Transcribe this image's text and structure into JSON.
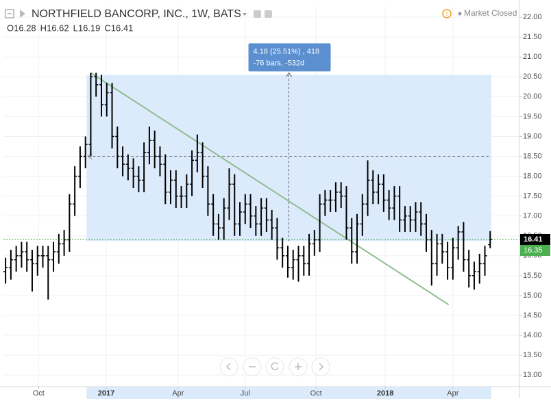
{
  "chart_data": {
    "type": "ohlc",
    "title": "NORTHFIELD BANCORP, INC., 1W, BATS",
    "status": "Market Closed",
    "ohlc_prefixes": [
      "O",
      "H",
      "L",
      "C"
    ],
    "color": "#000000",
    "x": [
      0,
      1,
      2,
      3,
      4,
      5,
      6,
      7,
      8,
      9,
      10,
      11,
      12,
      13,
      14,
      15,
      16,
      17,
      18,
      19,
      20,
      21,
      22,
      23,
      24,
      25,
      26,
      27,
      28,
      29,
      30,
      31,
      32,
      33,
      34,
      35,
      36,
      37,
      38,
      39,
      40,
      41,
      42,
      43,
      44,
      45,
      46,
      47,
      48,
      49,
      50,
      51,
      52,
      53,
      54,
      55,
      56,
      57,
      58,
      59,
      60,
      61,
      62,
      63,
      64,
      65,
      66,
      67,
      68,
      69,
      70,
      71,
      72,
      73,
      74,
      75,
      76,
      77,
      78,
      79,
      80,
      81,
      82,
      83,
      84,
      85,
      86,
      87,
      88,
      89,
      90,
      91
    ],
    "open": [
      15.6,
      15.7,
      15.9,
      16.0,
      16.1,
      15.9,
      15.8,
      16.0,
      16.0,
      15.9,
      16.1,
      16.3,
      16.4,
      17.3,
      18.0,
      18.5,
      18.8,
      20.5,
      20.3,
      19.8,
      20.1,
      19.0,
      18.5,
      18.3,
      18.2,
      18.0,
      17.9,
      18.6,
      18.9,
      18.5,
      18.3,
      17.6,
      17.9,
      17.5,
      17.5,
      17.8,
      18.4,
      18.6,
      18.0,
      17.3,
      16.8,
      16.7,
      17.2,
      17.8,
      16.8,
      17.1,
      17.3,
      17.0,
      16.8,
      17.2,
      16.9,
      16.7,
      16.2,
      16.0,
      15.7,
      15.9,
      16.0,
      15.8,
      16.3,
      16.4,
      17.3,
      17.4,
      17.4,
      17.6,
      17.5,
      16.7,
      16.1,
      16.8,
      17.3,
      17.9,
      17.6,
      17.8,
      17.4,
      17.2,
      17.5,
      16.9,
      17.0,
      16.9,
      17.1,
      16.8,
      16.4,
      15.8,
      16.3,
      16.1,
      15.7,
      16.2,
      16.6,
      15.9,
      15.5,
      15.6,
      15.8,
      16.28
    ],
    "high": [
      15.95,
      16.15,
      16.25,
      16.35,
      16.35,
      16.15,
      16.25,
      16.25,
      16.25,
      16.35,
      16.55,
      16.65,
      17.55,
      18.25,
      18.75,
      19.0,
      20.6,
      20.6,
      20.55,
      20.35,
      20.35,
      19.25,
      18.75,
      18.55,
      18.45,
      18.25,
      18.85,
      19.25,
      19.15,
      18.75,
      18.55,
      18.15,
      18.15,
      17.75,
      18.05,
      18.65,
      19.05,
      18.85,
      18.25,
      17.55,
      17.05,
      17.45,
      18.2,
      18.05,
      17.35,
      17.55,
      17.55,
      17.25,
      17.45,
      17.45,
      17.15,
      16.95,
      16.45,
      16.25,
      16.15,
      16.25,
      16.25,
      16.55,
      16.65,
      17.55,
      17.65,
      17.65,
      17.85,
      17.85,
      17.75,
      16.95,
      17.05,
      17.55,
      18.4,
      18.15,
      18.05,
      18.05,
      17.65,
      17.75,
      17.75,
      17.25,
      17.25,
      17.35,
      17.35,
      17.05,
      16.65,
      16.55,
      16.55,
      16.35,
      16.45,
      16.75,
      16.85,
      16.15,
      15.85,
      16.05,
      16.25,
      16.62
    ],
    "low": [
      15.3,
      15.4,
      15.6,
      15.7,
      15.6,
      15.1,
      15.5,
      15.7,
      14.9,
      15.6,
      15.8,
      16.0,
      16.1,
      17.0,
      17.7,
      18.2,
      18.5,
      20.0,
      19.5,
      19.5,
      18.7,
      18.2,
      18.0,
      17.9,
      17.7,
      17.6,
      17.6,
      18.3,
      18.2,
      18.0,
      17.3,
      17.3,
      17.2,
      17.2,
      17.2,
      17.5,
      18.1,
      17.7,
      17.0,
      16.5,
      16.4,
      16.4,
      16.9,
      16.5,
      16.5,
      16.8,
      16.7,
      16.5,
      16.5,
      16.6,
      16.4,
      15.9,
      15.7,
      15.45,
      15.4,
      15.35,
      15.5,
      15.5,
      16.0,
      16.1,
      17.0,
      17.1,
      17.1,
      17.2,
      16.4,
      15.8,
      15.8,
      16.5,
      17.0,
      17.3,
      17.3,
      17.1,
      16.9,
      16.9,
      16.6,
      16.6,
      16.6,
      16.6,
      16.5,
      16.1,
      15.25,
      15.5,
      15.8,
      15.4,
      15.4,
      15.9,
      15.6,
      15.2,
      15.15,
      15.3,
      15.5,
      16.19
    ],
    "close": [
      15.7,
      15.9,
      16.0,
      16.1,
      15.9,
      15.8,
      16.0,
      16.0,
      15.9,
      16.1,
      16.3,
      16.4,
      17.3,
      18.0,
      18.5,
      18.8,
      20.5,
      20.3,
      19.8,
      20.1,
      19.0,
      18.5,
      18.3,
      18.2,
      18.0,
      17.9,
      18.6,
      18.9,
      18.5,
      18.3,
      17.6,
      17.9,
      17.5,
      17.5,
      17.8,
      18.4,
      18.6,
      18.0,
      17.3,
      16.8,
      16.7,
      17.2,
      17.8,
      16.8,
      17.1,
      17.3,
      17.0,
      16.8,
      17.2,
      16.9,
      16.7,
      16.2,
      16.0,
      15.7,
      15.9,
      16.0,
      15.8,
      16.3,
      16.4,
      17.3,
      17.4,
      17.4,
      17.6,
      17.5,
      16.7,
      16.1,
      16.8,
      17.3,
      17.9,
      17.6,
      17.8,
      17.4,
      17.2,
      17.5,
      16.9,
      17.0,
      16.9,
      17.1,
      16.8,
      16.4,
      15.8,
      16.3,
      16.1,
      15.7,
      16.2,
      16.6,
      15.9,
      15.5,
      15.6,
      15.8,
      16.0,
      16.41
    ],
    "line_level": 16.35,
    "trend_line": {
      "x": [
        16,
        83.2
      ],
      "y": [
        20.6,
        14.77
      ],
      "color": "#8fbc8f"
    },
    "measure": {
      "xlim": [
        15.2,
        91.2
      ],
      "ylim": [
        16.37,
        20.55
      ],
      "mid": 18.5,
      "color": "#dcebfb",
      "label_lines": [
        "4.18 (25.51%) , 418",
        "-76 bars, -532d"
      ]
    },
    "xlim": [
      -0.4,
      96.5
    ],
    "ylim": [
      12.71,
      22.26
    ],
    "xticks": [
      {
        "value": 6.2,
        "label": "Oct"
      },
      {
        "value": 18.9,
        "label": "2017"
      },
      {
        "value": 32.4,
        "label": "Apr"
      },
      {
        "value": 45,
        "label": "Jul"
      },
      {
        "value": 58.3,
        "label": "Oct"
      },
      {
        "value": 71.3,
        "label": "2018"
      },
      {
        "value": 84,
        "label": "Apr"
      }
    ],
    "yticks": [
      {
        "value": 13,
        "label": "13.00"
      },
      {
        "value": 13.5,
        "label": "13.50"
      },
      {
        "value": 14,
        "label": "14.00"
      },
      {
        "value": 14.5,
        "label": "14.50"
      },
      {
        "value": 15,
        "label": "15.00"
      },
      {
        "value": 15.5,
        "label": "15.50"
      },
      {
        "value": 16,
        "label": "16.00"
      },
      {
        "value": 16.5,
        "label": "16.50"
      },
      {
        "value": 17,
        "label": "17.00"
      },
      {
        "value": 17.5,
        "label": "17.50"
      },
      {
        "value": 18,
        "label": "18.00"
      },
      {
        "value": 18.5,
        "label": "18.50"
      },
      {
        "value": 19,
        "label": "19.00"
      },
      {
        "value": 19.5,
        "label": "19.50"
      },
      {
        "value": 20,
        "label": "20.00"
      },
      {
        "value": 20.5,
        "label": "20.50"
      },
      {
        "value": 21,
        "label": "21.00"
      },
      {
        "value": 21.5,
        "label": "21.50"
      },
      {
        "value": 22,
        "label": "22.00"
      }
    ],
    "grid": true
  }
}
